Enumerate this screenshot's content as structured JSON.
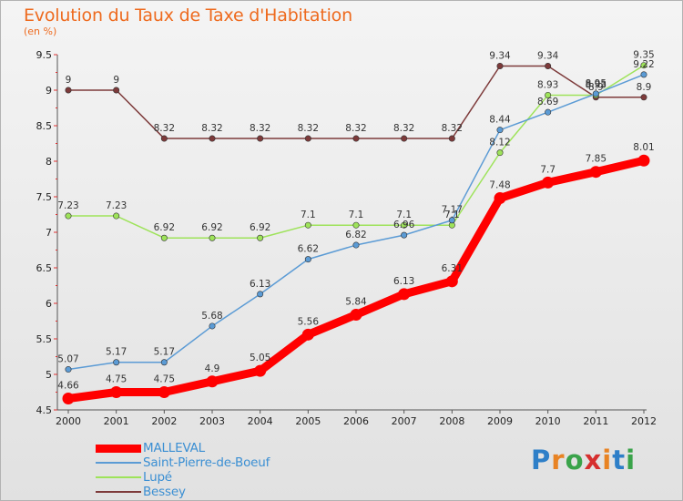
{
  "title": "Evolution du Taux de Taxe d'Habitation",
  "subtitle": "(en %)",
  "logo": {
    "text": "Proxiti",
    "letters": [
      "P",
      "r",
      "o",
      "x",
      "i",
      "t",
      "i"
    ],
    "colors": [
      "#2e7fc8",
      "#e88323",
      "#3aa34a",
      "#d62f2f",
      "#e88323",
      "#2e7fc8",
      "#3aa34a"
    ]
  },
  "chart_data": {
    "type": "line",
    "title": "Evolution du Taux de Taxe d'Habitation",
    "ylabel": "(en %)",
    "xlabel": "",
    "x": [
      "2000",
      "2001",
      "2002",
      "2003",
      "2004",
      "2005",
      "2006",
      "2007",
      "2008",
      "2009",
      "2010",
      "2011",
      "2012"
    ],
    "ylim": [
      4.5,
      9.5
    ],
    "yticks": [
      "4.5",
      "5",
      "5.5",
      "6",
      "6.5",
      "7",
      "7.5",
      "8",
      "8.5",
      "9",
      "9.5"
    ],
    "grid": false,
    "legend_position": "bottom-left",
    "series": [
      {
        "name": "MALLEVAL",
        "color": "#ff0000",
        "values": [
          4.66,
          4.75,
          4.75,
          4.9,
          5.05,
          5.56,
          5.84,
          6.13,
          6.31,
          7.48,
          7.7,
          7.85,
          8.01
        ],
        "labels": [
          "4.66",
          "4.75",
          "4.75",
          "4.9",
          "5.05",
          "5.56",
          "5.84",
          "6.13",
          "6.31",
          "7.48",
          "7.7",
          "7.85",
          "8.01"
        ]
      },
      {
        "name": "Saint-Pierre-de-Boeuf",
        "color": "#5b9bd5",
        "values": [
          5.07,
          5.17,
          5.17,
          5.68,
          6.13,
          6.62,
          6.82,
          6.96,
          7.17,
          8.44,
          8.69,
          8.95,
          9.22
        ],
        "labels": [
          "5.07",
          "5.17",
          "5.17",
          "5.68",
          "6.13",
          "6.62",
          "6.82",
          "6.96",
          "7.17",
          "8.44",
          "8.69",
          "8.95",
          "9.22"
        ]
      },
      {
        "name": "Lupé",
        "color": "#9ee35a",
        "values": [
          7.23,
          7.23,
          6.92,
          6.92,
          6.92,
          7.1,
          7.1,
          7.1,
          7.1,
          8.12,
          8.93,
          8.93,
          9.35
        ],
        "labels": [
          "7.23",
          "7.23",
          "6.92",
          "6.92",
          "6.92",
          "7.1",
          "7.1",
          "7.1",
          "7.1",
          "8.12",
          "8.93",
          "8.93",
          "9.35"
        ]
      },
      {
        "name": "Bessey",
        "color": "#7d3a3a",
        "values": [
          9,
          9,
          8.32,
          8.32,
          8.32,
          8.32,
          8.32,
          8.32,
          8.32,
          9.34,
          9.34,
          8.9,
          8.9
        ],
        "labels": [
          "9",
          "9",
          "8.32",
          "8.32",
          "8.32",
          "8.32",
          "8.32",
          "8.32",
          "8.32",
          "9.34",
          "9.34",
          "8.9",
          "8.9"
        ]
      }
    ]
  }
}
